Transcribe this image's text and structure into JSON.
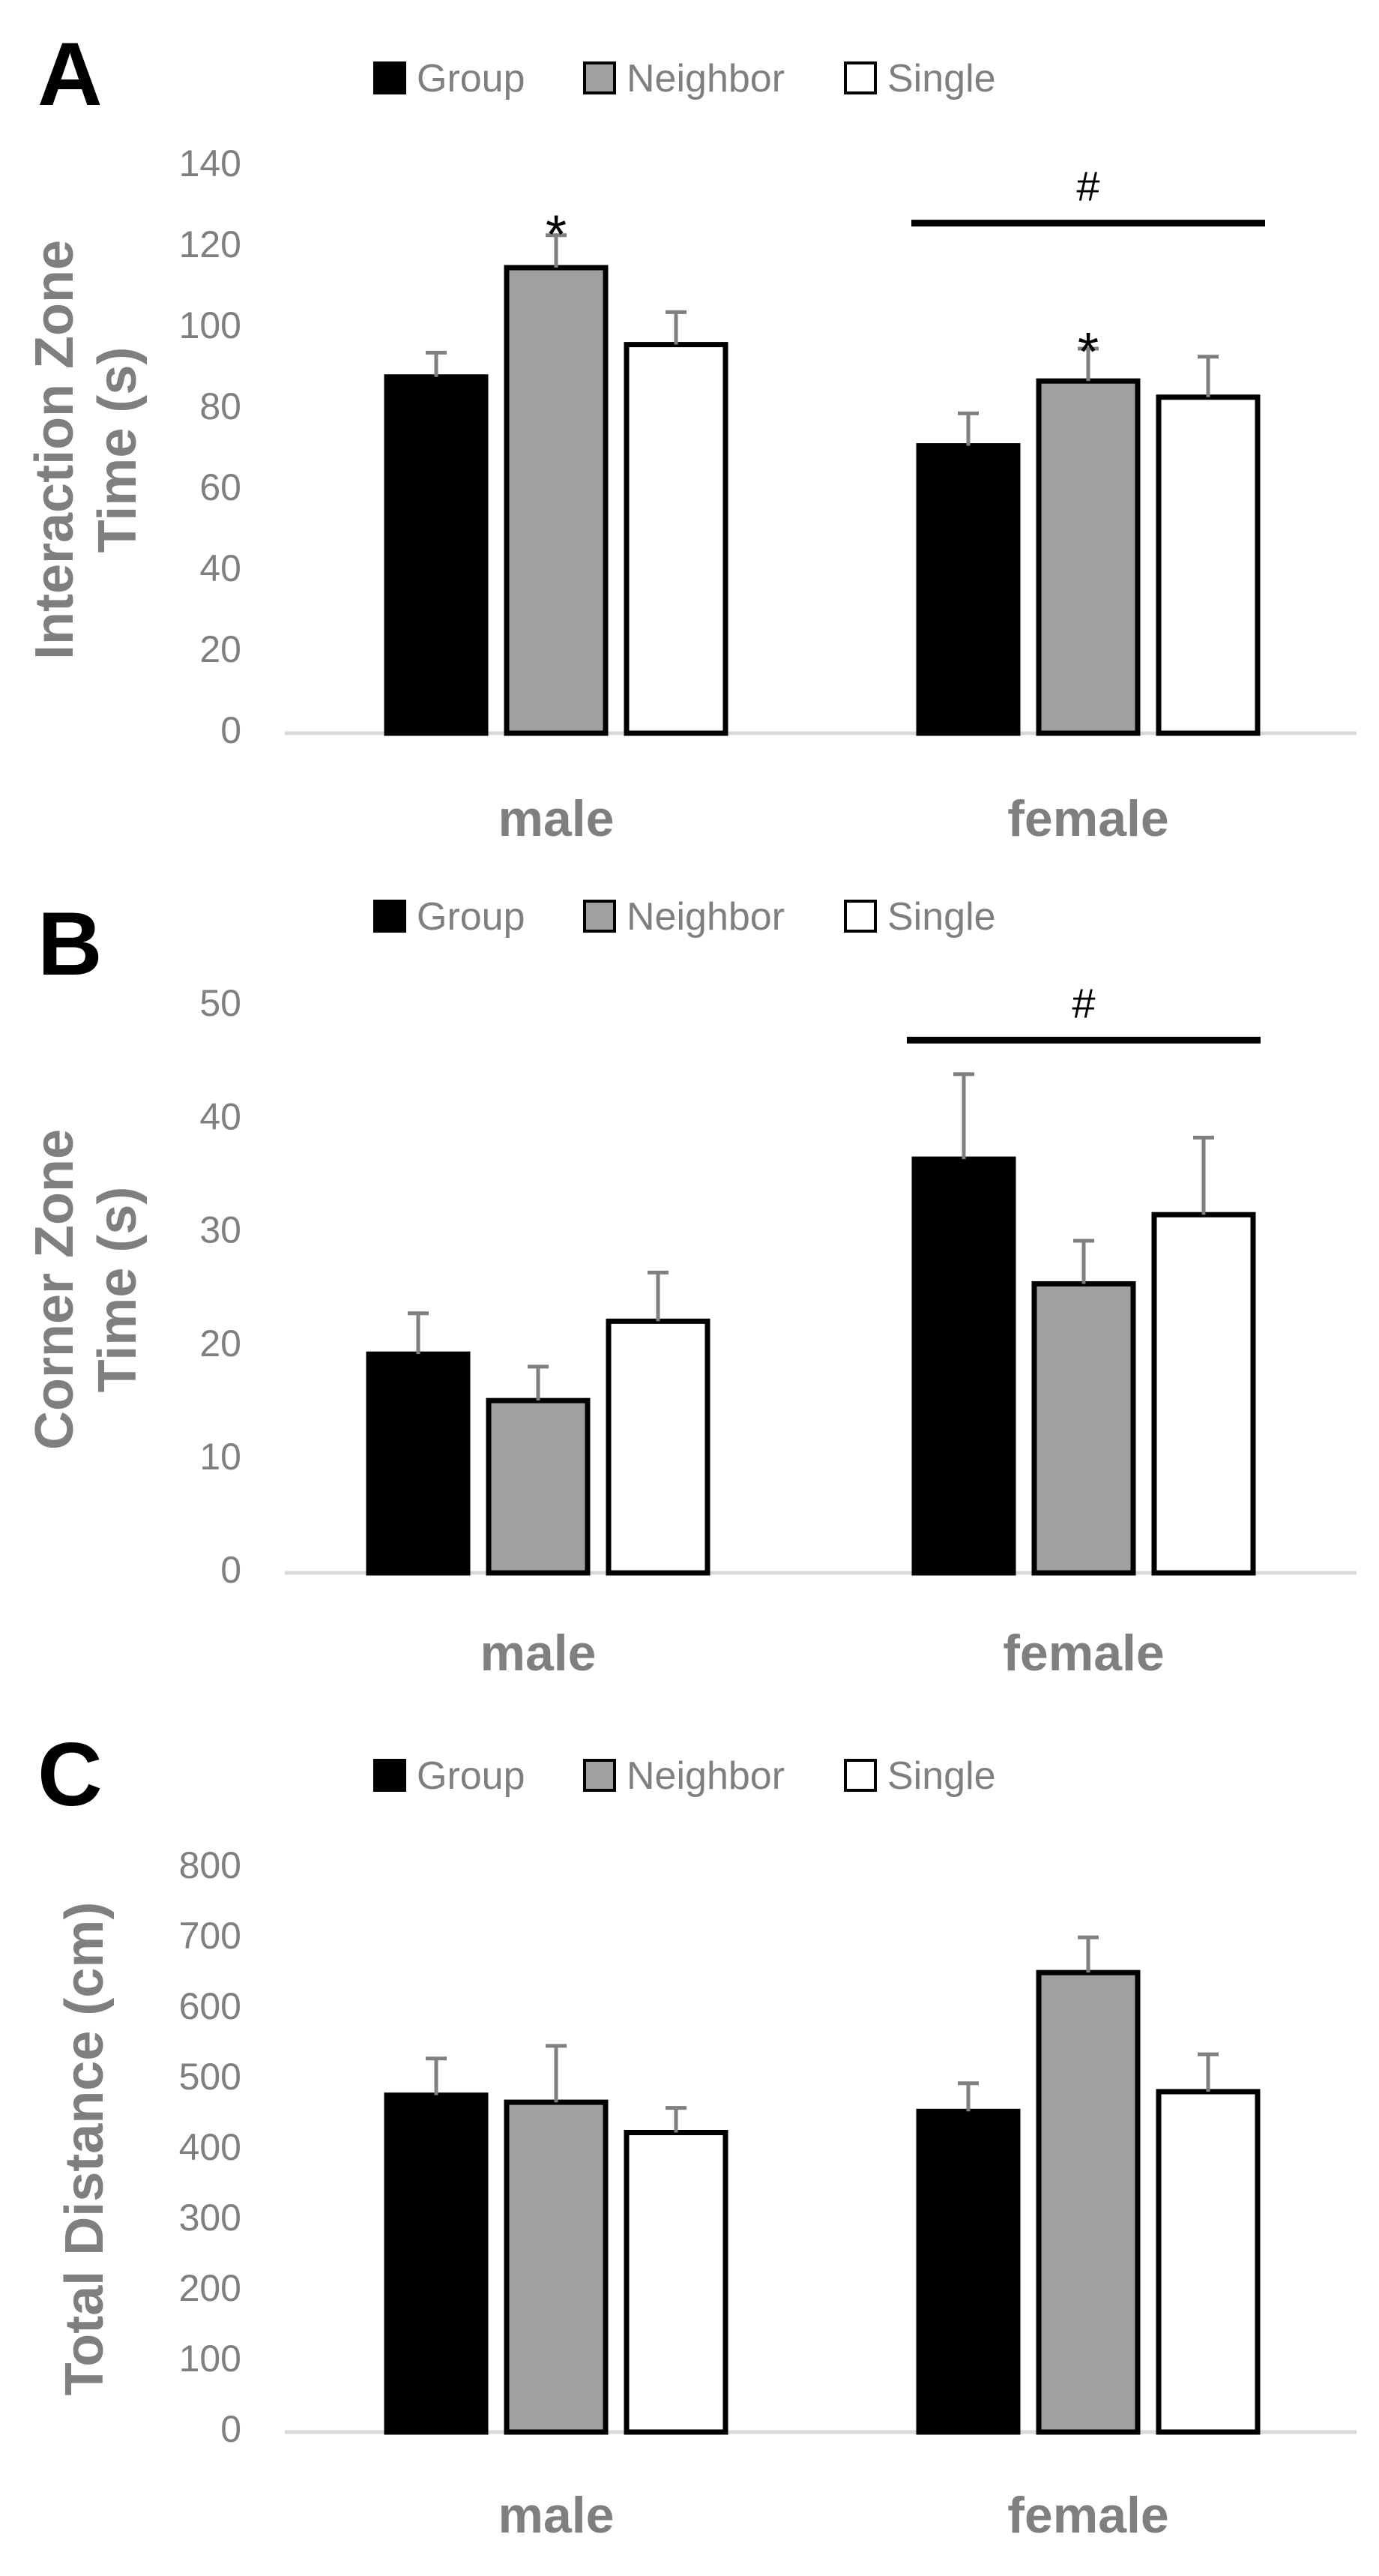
{
  "chart_data": [
    {
      "type": "bar",
      "panel_label": "A",
      "ylabel": "Interaction Zone Time (s)",
      "ylabel_lines": [
        "Interaction Zone",
        "Time (s)"
      ],
      "ylim": [
        0,
        140
      ],
      "yticks": [
        0,
        20,
        40,
        60,
        80,
        100,
        120,
        140
      ],
      "categories": [
        "male",
        "female"
      ],
      "series": [
        {
          "name": "Group",
          "values": [
            88,
            71
          ],
          "errors": [
            6,
            8
          ]
        },
        {
          "name": "Neighbor",
          "values": [
            115,
            87
          ],
          "errors": [
            8,
            8
          ]
        },
        {
          "name": "Single",
          "values": [
            96,
            83
          ],
          "errors": [
            8,
            10
          ]
        }
      ],
      "legend_position": "top",
      "grid": false,
      "annotations": [
        {
          "text": "*",
          "category": 0,
          "series": 1,
          "level": 126
        },
        {
          "text": "*",
          "category": 1,
          "series": 1,
          "level": 97
        },
        {
          "text": "#",
          "bracket": [
            0,
            2
          ],
          "category": 1,
          "level": 126
        }
      ]
    },
    {
      "type": "bar",
      "panel_label": "B",
      "ylabel": "Corner Zone Time (s)",
      "ylabel_lines": [
        "Corner Zone",
        "Time (s)"
      ],
      "ylim": [
        0,
        50
      ],
      "yticks": [
        0,
        10,
        20,
        30,
        40,
        50
      ],
      "categories": [
        "male",
        "female"
      ],
      "series": [
        {
          "name": "Group",
          "values": [
            19.3,
            36.5
          ],
          "errors": [
            3.6,
            7.5
          ]
        },
        {
          "name": "Neighbor",
          "values": [
            15.2,
            25.5
          ],
          "errors": [
            3.0,
            3.8
          ]
        },
        {
          "name": "Single",
          "values": [
            22.2,
            31.6
          ],
          "errors": [
            4.3,
            6.8
          ]
        }
      ],
      "legend_position": "top",
      "grid": false,
      "annotations": [
        {
          "text": "#",
          "bracket": [
            0,
            2
          ],
          "category": 1,
          "level": 47
        }
      ]
    },
    {
      "type": "bar",
      "panel_label": "C",
      "ylabel": "Total Distance (cm)",
      "ylabel_lines": [
        "Total Distance (cm)"
      ],
      "ylim": [
        0,
        800
      ],
      "yticks": [
        0,
        100,
        200,
        300,
        400,
        500,
        600,
        700,
        800
      ],
      "categories": [
        "male",
        "female"
      ],
      "series": [
        {
          "name": "Group",
          "values": [
            478,
            455
          ],
          "errors": [
            52,
            40
          ]
        },
        {
          "name": "Neighbor",
          "values": [
            468,
            652
          ],
          "errors": [
            80,
            50
          ]
        },
        {
          "name": "Single",
          "values": [
            425,
            483
          ],
          "errors": [
            35,
            53
          ]
        }
      ],
      "legend_position": "top",
      "grid": false,
      "annotations": []
    }
  ],
  "colors": {
    "Group": "#000000",
    "Neighbor": "#a0a0a0",
    "Single": "#ffffff",
    "bar_outline": "#000000",
    "axis_text": "#7f7f7f",
    "error_bar": "#808080",
    "baseline": "#d9d9d9"
  }
}
